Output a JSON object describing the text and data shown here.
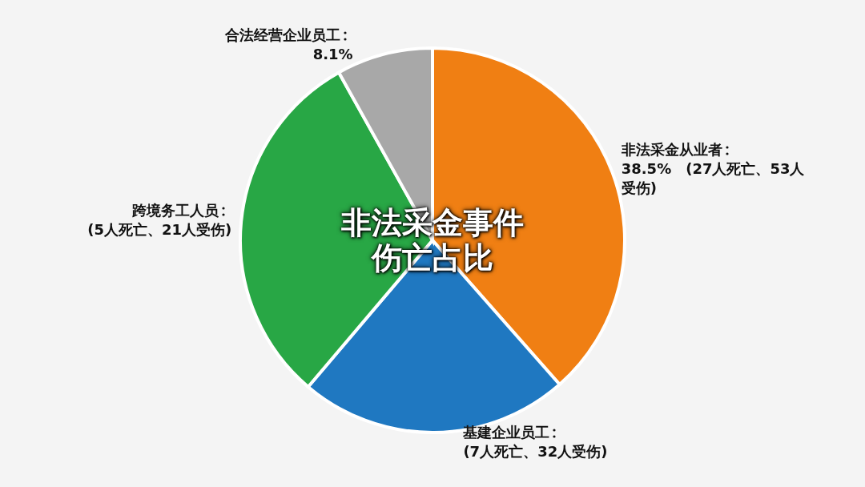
{
  "chart_data": {
    "type": "pie",
    "title": "非法采金事件伤亡占比",
    "categories": [
      "非法采金从业者",
      "基建企业员工",
      "跨境务工人员",
      "合法经营企业员工"
    ],
    "values": [
      38.5,
      22.7,
      30.7,
      8.1
    ],
    "colors": [
      "#f07f13",
      "#1f78c1",
      "#28a745",
      "#a8a8a8"
    ],
    "value_labels": [
      "38.5%",
      null,
      null,
      "8.1%"
    ],
    "annotations": [
      {
        "text": "(27人死亡、53人受伤)",
        "x": "非法采金从业者"
      },
      {
        "text": "(7人死亡、32人受伤)",
        "x": "基建企业员工"
      },
      {
        "text": "(5人死亡、21人受伤)",
        "x": "跨境务工人员"
      }
    ]
  }
}
